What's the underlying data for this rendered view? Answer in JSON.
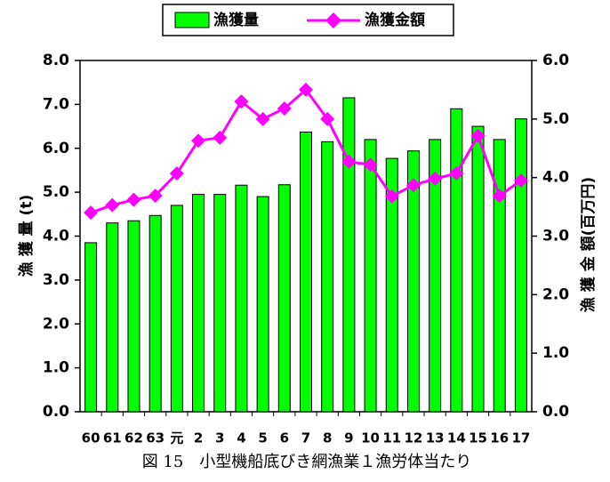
{
  "chart_data": {
    "type": "bar_line",
    "categories": [
      "60",
      "61",
      "62",
      "63",
      "元",
      "2",
      "3",
      "4",
      "5",
      "6",
      "7",
      "8",
      "9",
      "10",
      "11",
      "12",
      "13",
      "14",
      "15",
      "16",
      "17"
    ],
    "series": [
      {
        "name": "漁獲量",
        "type": "bar",
        "color": "#00ff00",
        "axis": "y",
        "values": [
          3.85,
          4.3,
          4.35,
          4.47,
          4.7,
          4.95,
          4.95,
          5.16,
          4.9,
          5.17,
          6.37,
          6.15,
          7.15,
          6.2,
          5.77,
          5.94,
          6.2,
          6.9,
          6.5,
          6.2,
          6.67
        ]
      },
      {
        "name": "漁獲金額",
        "type": "line",
        "color": "#ff00ff",
        "axis": "y2",
        "values": [
          3.4,
          3.53,
          3.62,
          3.69,
          4.07,
          4.63,
          4.68,
          5.3,
          5.0,
          5.18,
          5.5,
          5.0,
          4.27,
          4.22,
          3.68,
          3.87,
          3.98,
          4.07,
          4.71,
          3.69,
          3.95
        ]
      }
    ],
    "y_label": "漁 獲 量 (t)",
    "y2_label": "漁 獲 金 額(百万円)",
    "caption": "図 15　小型機船底びき網漁業１漁労体当たり",
    "ylim": [
      0,
      8
    ],
    "yticks": [
      {
        "value": 0,
        "label": "0.0"
      },
      {
        "value": 1,
        "label": "1.0"
      },
      {
        "value": 2,
        "label": "2.0"
      },
      {
        "value": 3,
        "label": "3.0"
      },
      {
        "value": 4,
        "label": "4.0"
      },
      {
        "value": 5,
        "label": "5.0"
      },
      {
        "value": 6,
        "label": "6.0"
      },
      {
        "value": 7,
        "label": "7.0"
      },
      {
        "value": 8,
        "label": "8.0"
      }
    ],
    "y2lim": [
      0,
      6
    ],
    "y2ticks": [
      {
        "value": 0,
        "label": "0.0"
      },
      {
        "value": 1,
        "label": "1.0"
      },
      {
        "value": 2,
        "label": "2.0"
      },
      {
        "value": 3,
        "label": "3.0"
      },
      {
        "value": 4,
        "label": "4.0"
      },
      {
        "value": 5,
        "label": "5.0"
      },
      {
        "value": 6,
        "label": "6.0"
      }
    ],
    "grid": false
  }
}
